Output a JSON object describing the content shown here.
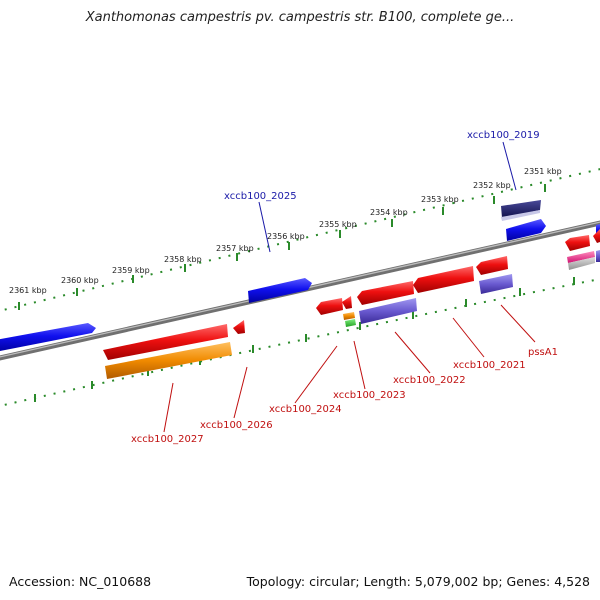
{
  "title": "Xanthomonas campestris pv. campestris str. B100, complete ge...",
  "footer": {
    "accession": "Accession: NC_010688",
    "topology": "Topology: circular; Length: 5,079,002 bp; Genes: 4,528"
  },
  "colors": {
    "backbone": "#8a8a8a",
    "ticks": "#2a8a2a",
    "forward_gene": "#1a1ae0",
    "reverse_gene": "#e01010",
    "orange_feature": "#f08a00",
    "purple_feature": "#6a5ad0",
    "label_blue": "#1a1aa8",
    "label_red": "#c01010"
  },
  "ticks": [
    {
      "label": "2351 kbp"
    },
    {
      "label": "2352 kbp"
    },
    {
      "label": "2353 kbp"
    },
    {
      "label": "2354 kbp"
    },
    {
      "label": "2355 kbp"
    },
    {
      "label": "2356 kbp"
    },
    {
      "label": "2357 kbp"
    },
    {
      "label": "2358 kbp"
    },
    {
      "label": "2359 kbp"
    },
    {
      "label": "2360 kbp"
    },
    {
      "label": "2361 kbp"
    }
  ],
  "gene_labels": [
    {
      "text": "xccb100_2019",
      "strand": "forward"
    },
    {
      "text": "xccb100_2025",
      "strand": "forward"
    },
    {
      "text": "xccb100_2027",
      "strand": "reverse"
    },
    {
      "text": "xccb100_2026",
      "strand": "reverse"
    },
    {
      "text": "xccb100_2024",
      "strand": "reverse"
    },
    {
      "text": "xccb100_2023",
      "strand": "reverse"
    },
    {
      "text": "xccb100_2022",
      "strand": "reverse"
    },
    {
      "text": "xccb100_2021",
      "strand": "reverse"
    },
    {
      "text": "pssA1",
      "strand": "reverse"
    }
  ]
}
